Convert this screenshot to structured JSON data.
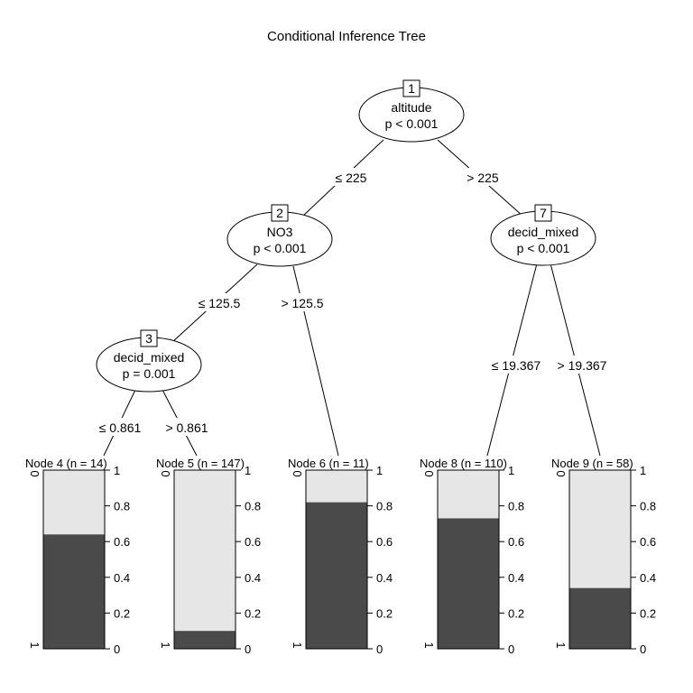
{
  "title": "Conditional Inference Tree",
  "inner_nodes": [
    {
      "id": "1",
      "variable": "altitude",
      "pvalue": "p < 0.001"
    },
    {
      "id": "2",
      "variable": "NO3",
      "pvalue": "p < 0.001"
    },
    {
      "id": "3",
      "variable": "decid_mixed",
      "pvalue": "p = 0.001"
    },
    {
      "id": "7",
      "variable": "decid_mixed",
      "pvalue": "p < 0.001"
    }
  ],
  "edges": [
    {
      "label": "≤ 225"
    },
    {
      "label": "> 225"
    },
    {
      "label": "≤ 125.5"
    },
    {
      "label": "> 125.5"
    },
    {
      "label": "≤ 0.861"
    },
    {
      "label": "> 0.861"
    },
    {
      "label": "≤ 19.367"
    },
    {
      "label": "> 19.367"
    }
  ],
  "terminal_nodes": [
    {
      "label": "Node 4 (n = 14)",
      "dark_fraction": 0.64
    },
    {
      "label": "Node 5 (n = 147)",
      "dark_fraction": 0.1
    },
    {
      "label": "Node 6 (n = 11)",
      "dark_fraction": 0.82
    },
    {
      "label": "Node 8 (n = 110)",
      "dark_fraction": 0.73
    },
    {
      "label": "Node 9 (n = 58)",
      "dark_fraction": 0.34
    }
  ],
  "axis": {
    "right_ticks": [
      "0",
      "0.2",
      "0.4",
      "0.6",
      "0.8",
      "1"
    ],
    "left_top": "0",
    "left_bottom": "1"
  },
  "colors": {
    "dark": "#4a4a4a",
    "light": "#e6e6e6"
  }
}
